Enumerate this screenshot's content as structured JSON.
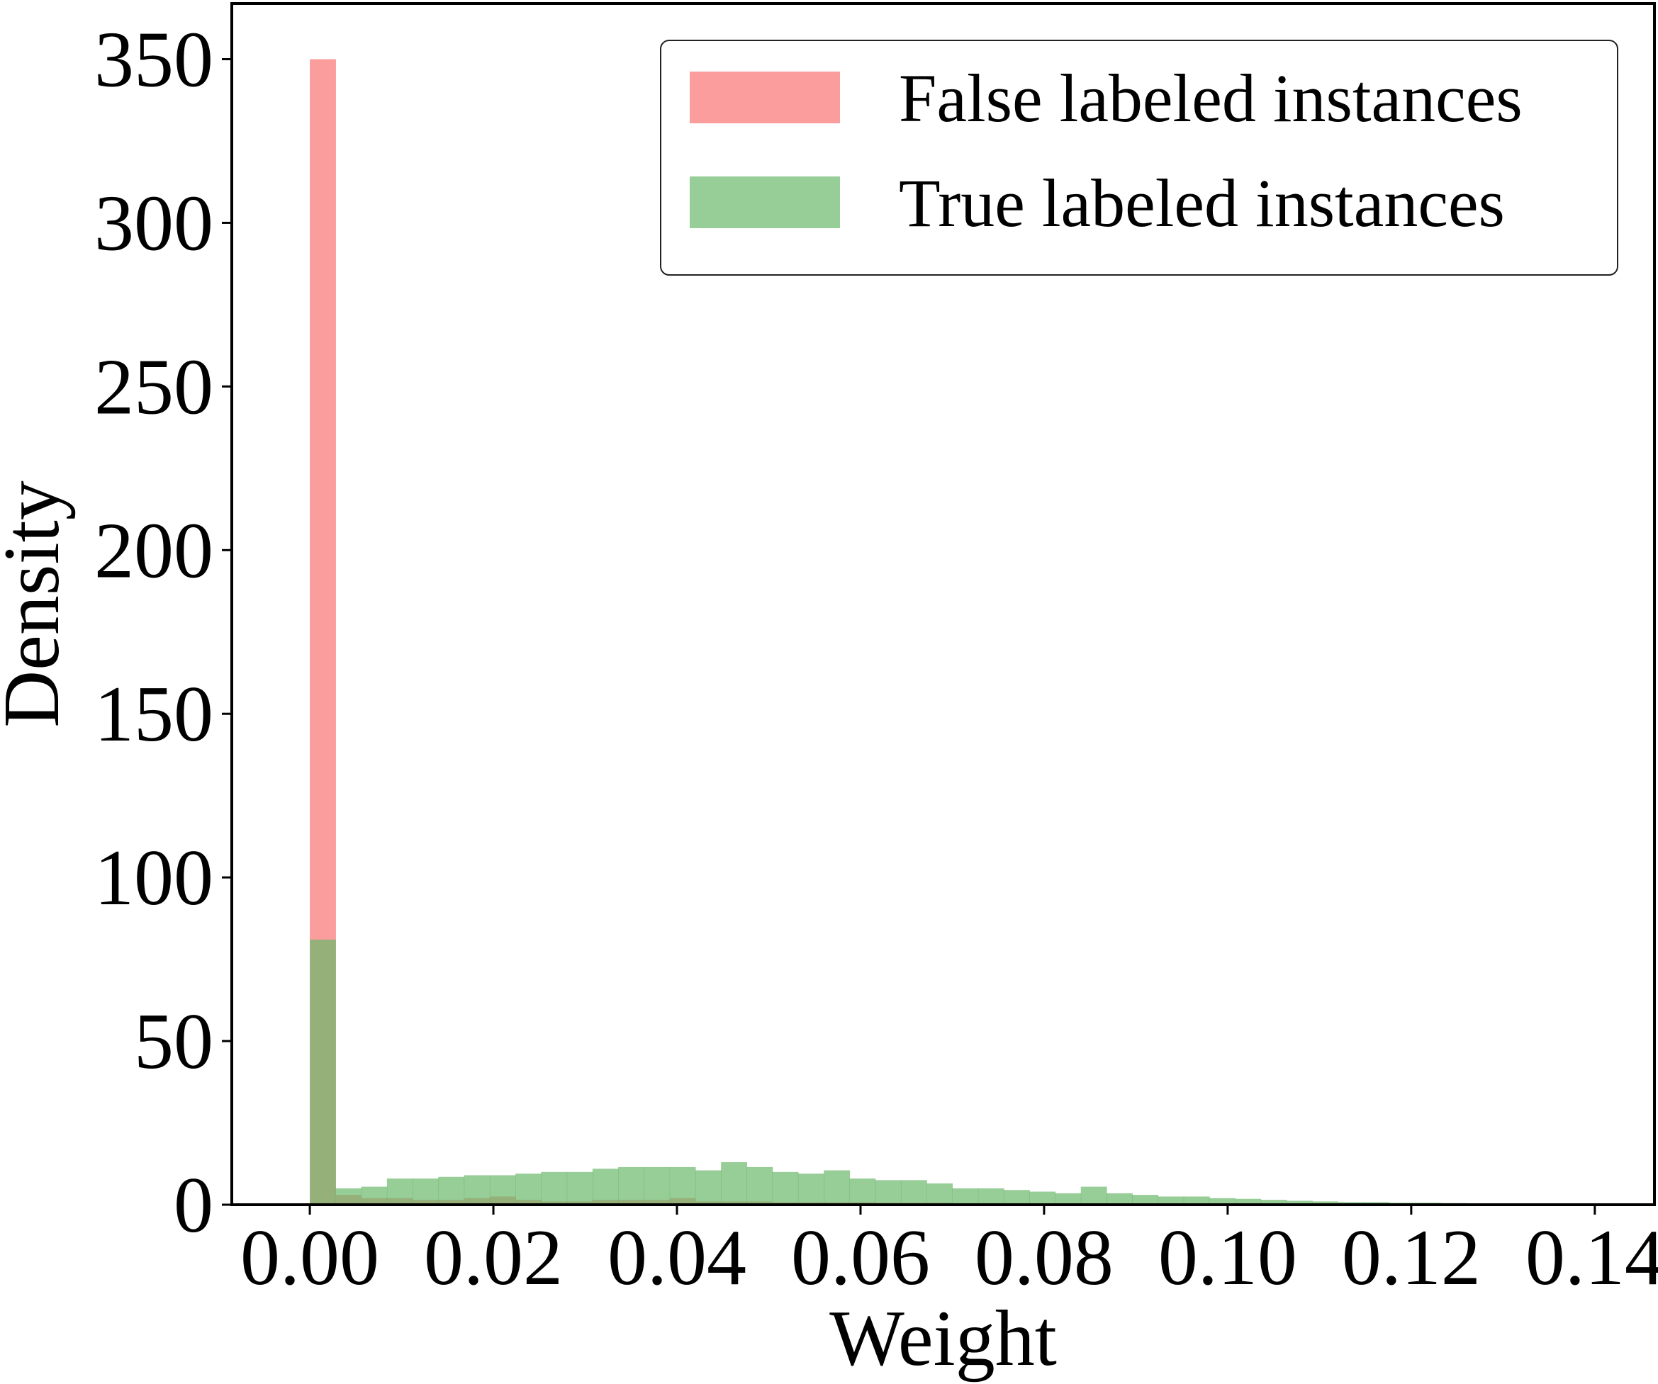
{
  "chart_data": {
    "type": "bar",
    "title": "",
    "xlabel": "Weight",
    "ylabel": "Density",
    "xlim": [
      -0.0085,
      0.1465
    ],
    "ylim": [
      0,
      367
    ],
    "xticks": [
      "0.00",
      "0.02",
      "0.04",
      "0.06",
      "0.08",
      "0.10",
      "0.12",
      "0.14"
    ],
    "yticks": [
      "0",
      "50",
      "100",
      "150",
      "200",
      "250",
      "300",
      "350"
    ],
    "legend_position": "top-right",
    "bin_width": 0.0028,
    "bin_start": 0.0,
    "series": [
      {
        "name": "False labeled instances",
        "color": "#fa7c7c",
        "opacity": 0.75,
        "values": [
          350,
          3,
          2,
          2,
          1.5,
          1.5,
          2,
          2.5,
          1.5,
          1,
          1,
          1.5,
          1.5,
          1.5,
          2,
          1,
          1,
          1,
          0.8,
          0.8,
          0.8,
          0.8,
          0.6,
          0.6,
          0.6,
          0.5,
          0.5,
          0.5,
          0.4,
          0.4,
          0.4,
          0.3,
          0.3,
          0.3,
          0.2,
          0.2,
          0.2,
          0.2,
          0.1,
          0.1,
          0.1,
          0.1,
          0.1,
          0.1,
          0
        ]
      },
      {
        "name": "True labeled instances",
        "color": "#6bb86b",
        "opacity": 0.7,
        "values": [
          81,
          5,
          5.5,
          8,
          8,
          8.5,
          9,
          9,
          9.5,
          10,
          10,
          11,
          11.5,
          11.5,
          11.5,
          10.5,
          13,
          11.5,
          10,
          9.5,
          10.5,
          8,
          7.5,
          7.5,
          6.5,
          5,
          5,
          4.5,
          4,
          3.5,
          5.5,
          3.5,
          3,
          2.5,
          2.5,
          2,
          1.8,
          1.5,
          1.2,
          1,
          0.8,
          0.8,
          0.6,
          0.6,
          0.5,
          0.4,
          0.4,
          0.3,
          0.3,
          0.2
        ]
      }
    ]
  }
}
